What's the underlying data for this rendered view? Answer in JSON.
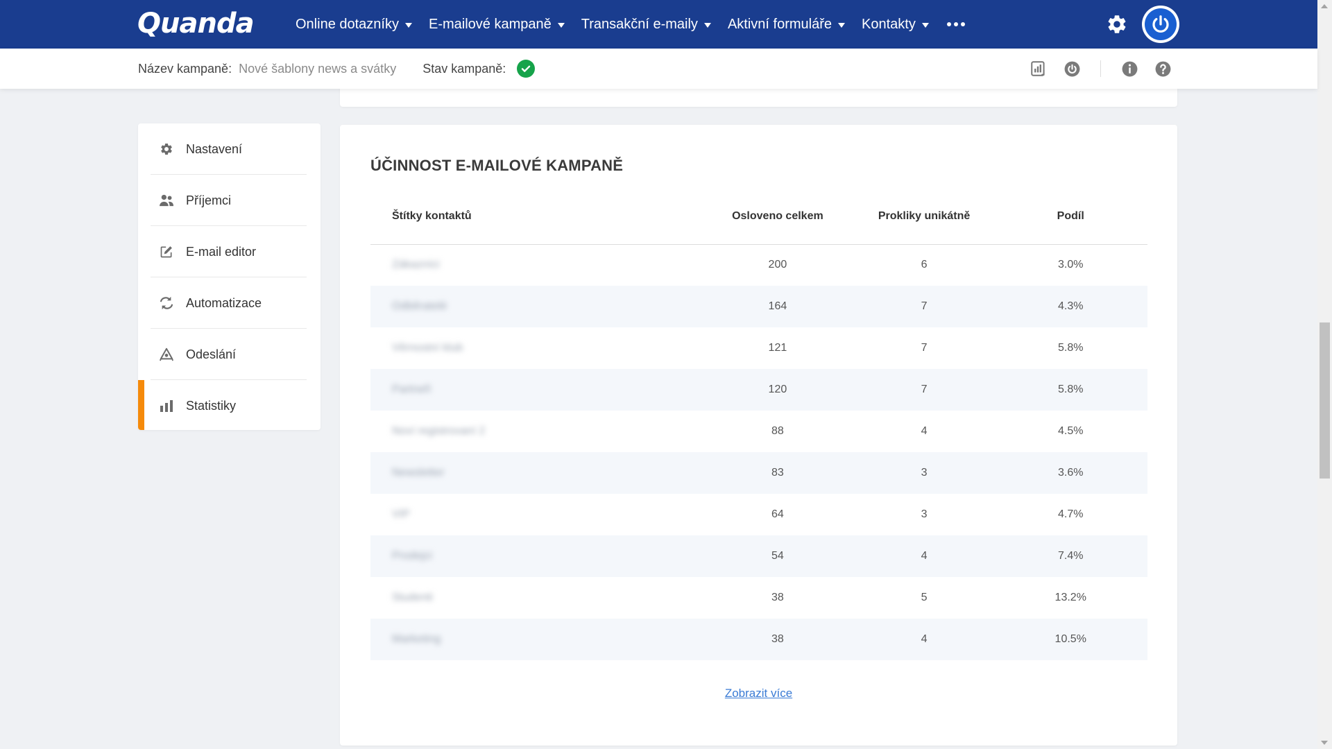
{
  "brand": {
    "logo_text": "Quanda"
  },
  "nav": {
    "items": [
      {
        "label": "Online dotazníky"
      },
      {
        "label": "E-mailové kampaně"
      },
      {
        "label": "Transakční e-maily"
      },
      {
        "label": "Aktivní formuláře"
      },
      {
        "label": "Kontakty"
      }
    ],
    "more_icon": "ellipsis-icon",
    "settings_icon": "gear-icon",
    "power_icon": "power-icon"
  },
  "subheader": {
    "campaign_name_label": "Název kampaně:",
    "campaign_name_value": "Nové šablony news a svátky",
    "campaign_status_label": "Stav kampaně:",
    "status_icon": "check-circle-icon",
    "status_color": "#16a34a",
    "actions": [
      "report-icon",
      "power-icon",
      "info-icon",
      "help-icon"
    ]
  },
  "sidebar": {
    "items": [
      {
        "label": "Nastavení",
        "icon": "gear-icon"
      },
      {
        "label": "Příjemci",
        "icon": "users-icon"
      },
      {
        "label": "E-mail editor",
        "icon": "edit-icon"
      },
      {
        "label": "Automatizace",
        "icon": "refresh-icon"
      },
      {
        "label": "Odeslání",
        "icon": "send-icon"
      },
      {
        "label": "Statistiky",
        "icon": "bar-chart-icon",
        "active": true
      }
    ],
    "active_color": "#f58a0b"
  },
  "stats": {
    "title": "ÚČINNOST E-MAILOVÉ KAMPANĚ",
    "columns": {
      "tag": "Štítky kontaktů",
      "total": "Osloveno celkem",
      "clicks": "Prokliky unikátně",
      "share": "Podíl"
    },
    "rows": [
      {
        "tag": "Zákazníci",
        "total": "200",
        "clicks": "6",
        "share": "3.0%"
      },
      {
        "tag": "Odběratelé",
        "total": "164",
        "clicks": "7",
        "share": "4.3%"
      },
      {
        "tag": "Věrnostní klub",
        "total": "121",
        "clicks": "7",
        "share": "5.8%"
      },
      {
        "tag": "Partneři",
        "total": "120",
        "clicks": "7",
        "share": "5.8%"
      },
      {
        "tag": "Noví registrovaní 2",
        "total": "88",
        "clicks": "4",
        "share": "4.5%"
      },
      {
        "tag": "Newsletter",
        "total": "83",
        "clicks": "3",
        "share": "3.6%"
      },
      {
        "tag": "VIP",
        "total": "64",
        "clicks": "3",
        "share": "4.7%"
      },
      {
        "tag": "Prodejci",
        "total": "54",
        "clicks": "4",
        "share": "7.4%"
      },
      {
        "tag": "Studenti",
        "total": "38",
        "clicks": "5",
        "share": "13.2%"
      },
      {
        "tag": "Marketing",
        "total": "38",
        "clicks": "4",
        "share": "10.5%"
      }
    ],
    "show_more": "Zobrazit více"
  },
  "colors": {
    "navbar": "#1a3d8f",
    "link": "#3a7bd5",
    "row_alt": "#f4f7fb"
  }
}
